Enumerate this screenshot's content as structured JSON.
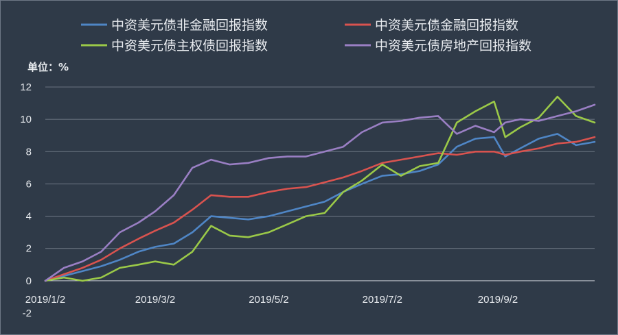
{
  "chart_data": {
    "type": "line",
    "unit_label": "单位：%",
    "ylim": [
      -2,
      12
    ],
    "yticks": [
      -2,
      0,
      2,
      4,
      6,
      8,
      10,
      12
    ],
    "ytick_labels": [
      "-2",
      "0",
      "2",
      "4",
      "6",
      "8",
      "10",
      "12"
    ],
    "xlim": [
      "2019/1/2",
      "2019/10/24"
    ],
    "xticks": [
      {
        "date": "2019/1/2",
        "label": "2019/1/2"
      },
      {
        "date": "2019/3/2",
        "label": "2019/3/2"
      },
      {
        "date": "2019/5/2",
        "label": "2019/5/2"
      },
      {
        "date": "2019/7/2",
        "label": "2019/7/2"
      },
      {
        "date": "2019/9/2",
        "label": "2019/9/2"
      }
    ],
    "grid": true,
    "legend_position": "top",
    "series": [
      {
        "name": "中资美元债非金融回报指数",
        "color": "#4f86c6",
        "points": [
          [
            "2019/1/2",
            0.0
          ],
          [
            "2019/1/12",
            0.3
          ],
          [
            "2019/1/22",
            0.6
          ],
          [
            "2019/2/1",
            0.9
          ],
          [
            "2019/2/11",
            1.3
          ],
          [
            "2019/2/21",
            1.8
          ],
          [
            "2019/3/2",
            2.1
          ],
          [
            "2019/3/12",
            2.3
          ],
          [
            "2019/3/22",
            3.0
          ],
          [
            "2019/4/1",
            4.0
          ],
          [
            "2019/4/11",
            3.9
          ],
          [
            "2019/4/21",
            3.8
          ],
          [
            "2019/5/2",
            4.0
          ],
          [
            "2019/5/12",
            4.3
          ],
          [
            "2019/5/22",
            4.6
          ],
          [
            "2019/6/1",
            4.9
          ],
          [
            "2019/6/11",
            5.5
          ],
          [
            "2019/6/21",
            6.0
          ],
          [
            "2019/7/2",
            6.5
          ],
          [
            "2019/7/12",
            6.6
          ],
          [
            "2019/7/22",
            6.8
          ],
          [
            "2019/8/1",
            7.2
          ],
          [
            "2019/8/11",
            8.3
          ],
          [
            "2019/8/21",
            8.8
          ],
          [
            "2019/8/31",
            8.9
          ],
          [
            "2019/9/6",
            7.7
          ],
          [
            "2019/9/14",
            8.2
          ],
          [
            "2019/9/24",
            8.8
          ],
          [
            "2019/10/4",
            9.1
          ],
          [
            "2019/10/14",
            8.4
          ],
          [
            "2019/10/24",
            8.6
          ]
        ]
      },
      {
        "name": "中资美元债金融回报指数",
        "color": "#d9534f",
        "points": [
          [
            "2019/1/2",
            0.0
          ],
          [
            "2019/1/12",
            0.4
          ],
          [
            "2019/1/22",
            0.8
          ],
          [
            "2019/2/1",
            1.3
          ],
          [
            "2019/2/11",
            2.0
          ],
          [
            "2019/2/21",
            2.6
          ],
          [
            "2019/3/2",
            3.1
          ],
          [
            "2019/3/12",
            3.6
          ],
          [
            "2019/3/22",
            4.4
          ],
          [
            "2019/4/1",
            5.3
          ],
          [
            "2019/4/11",
            5.2
          ],
          [
            "2019/4/21",
            5.2
          ],
          [
            "2019/5/2",
            5.5
          ],
          [
            "2019/5/12",
            5.7
          ],
          [
            "2019/5/22",
            5.8
          ],
          [
            "2019/6/1",
            6.1
          ],
          [
            "2019/6/11",
            6.4
          ],
          [
            "2019/6/21",
            6.8
          ],
          [
            "2019/7/2",
            7.3
          ],
          [
            "2019/7/12",
            7.5
          ],
          [
            "2019/7/22",
            7.7
          ],
          [
            "2019/8/1",
            7.9
          ],
          [
            "2019/8/11",
            7.8
          ],
          [
            "2019/8/21",
            8.0
          ],
          [
            "2019/8/31",
            8.0
          ],
          [
            "2019/9/6",
            7.8
          ],
          [
            "2019/9/14",
            8.0
          ],
          [
            "2019/9/24",
            8.2
          ],
          [
            "2019/10/4",
            8.5
          ],
          [
            "2019/10/14",
            8.6
          ],
          [
            "2019/10/24",
            8.9
          ]
        ]
      },
      {
        "name": "中资美元债主权债回报指数",
        "color": "#9bc948",
        "points": [
          [
            "2019/1/2",
            0.0
          ],
          [
            "2019/1/12",
            0.2
          ],
          [
            "2019/1/22",
            0.0
          ],
          [
            "2019/2/1",
            0.2
          ],
          [
            "2019/2/11",
            0.8
          ],
          [
            "2019/2/21",
            1.0
          ],
          [
            "2019/3/2",
            1.2
          ],
          [
            "2019/3/12",
            1.0
          ],
          [
            "2019/3/22",
            1.8
          ],
          [
            "2019/4/1",
            3.4
          ],
          [
            "2019/4/11",
            2.8
          ],
          [
            "2019/4/21",
            2.7
          ],
          [
            "2019/5/2",
            3.0
          ],
          [
            "2019/5/12",
            3.5
          ],
          [
            "2019/5/22",
            4.0
          ],
          [
            "2019/6/1",
            4.2
          ],
          [
            "2019/6/11",
            5.5
          ],
          [
            "2019/6/21",
            6.2
          ],
          [
            "2019/7/2",
            7.2
          ],
          [
            "2019/7/12",
            6.5
          ],
          [
            "2019/7/22",
            7.1
          ],
          [
            "2019/8/1",
            7.3
          ],
          [
            "2019/8/11",
            9.8
          ],
          [
            "2019/8/21",
            10.5
          ],
          [
            "2019/8/31",
            11.1
          ],
          [
            "2019/9/6",
            8.9
          ],
          [
            "2019/9/14",
            9.5
          ],
          [
            "2019/9/24",
            10.1
          ],
          [
            "2019/10/4",
            11.4
          ],
          [
            "2019/10/14",
            10.2
          ],
          [
            "2019/10/24",
            9.8
          ]
        ]
      },
      {
        "name": "中资美元债房地产回报指数",
        "color": "#9a7fc4",
        "points": [
          [
            "2019/1/2",
            0.0
          ],
          [
            "2019/1/12",
            0.8
          ],
          [
            "2019/1/22",
            1.2
          ],
          [
            "2019/2/1",
            1.8
          ],
          [
            "2019/2/11",
            3.0
          ],
          [
            "2019/2/21",
            3.6
          ],
          [
            "2019/3/2",
            4.3
          ],
          [
            "2019/3/12",
            5.3
          ],
          [
            "2019/3/22",
            7.0
          ],
          [
            "2019/4/1",
            7.5
          ],
          [
            "2019/4/11",
            7.2
          ],
          [
            "2019/4/21",
            7.3
          ],
          [
            "2019/5/2",
            7.6
          ],
          [
            "2019/5/12",
            7.7
          ],
          [
            "2019/5/22",
            7.7
          ],
          [
            "2019/6/1",
            8.0
          ],
          [
            "2019/6/11",
            8.3
          ],
          [
            "2019/6/21",
            9.2
          ],
          [
            "2019/7/2",
            9.8
          ],
          [
            "2019/7/12",
            9.9
          ],
          [
            "2019/7/22",
            10.1
          ],
          [
            "2019/8/1",
            10.2
          ],
          [
            "2019/8/11",
            9.1
          ],
          [
            "2019/8/21",
            9.6
          ],
          [
            "2019/8/31",
            9.2
          ],
          [
            "2019/9/6",
            9.8
          ],
          [
            "2019/9/14",
            10.0
          ],
          [
            "2019/9/24",
            9.9
          ],
          [
            "2019/10/4",
            10.2
          ],
          [
            "2019/10/14",
            10.5
          ],
          [
            "2019/10/24",
            10.9
          ]
        ]
      }
    ]
  }
}
